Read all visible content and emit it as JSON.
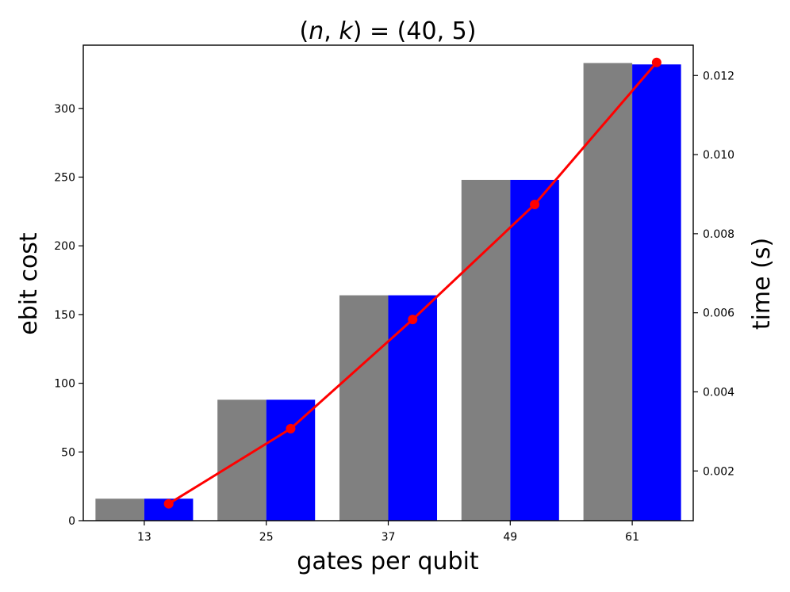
{
  "chart_data": {
    "type": "bar",
    "title": "(n, k) = (40, 5)",
    "xlabel": "gates per qubit",
    "ylabel": "ebit cost",
    "y2label": "time (s)",
    "categories": [
      "13",
      "25",
      "37",
      "49",
      "61"
    ],
    "series": [
      {
        "color": "#808080",
        "axis": "left",
        "kind": "bar",
        "values": [
          16,
          88,
          164,
          248,
          333
        ]
      },
      {
        "color": "#0000ff",
        "axis": "left",
        "kind": "bar",
        "values": [
          16,
          88,
          164,
          248,
          332
        ]
      },
      {
        "color": "#ff0000",
        "axis": "right",
        "kind": "line-marker",
        "values": [
          0.00117,
          0.00307,
          0.00583,
          0.00874,
          0.01233
        ]
      }
    ],
    "ylim": [
      0,
      346
    ],
    "y_ticks": [
      0,
      50,
      100,
      150,
      200,
      250,
      300
    ],
    "y2lim": [
      0.000743,
      0.012767
    ],
    "y2_ticks": [
      "0.002",
      "0.004",
      "0.006",
      "0.008",
      "0.010",
      "0.012"
    ],
    "grid": false,
    "legend": "none"
  }
}
